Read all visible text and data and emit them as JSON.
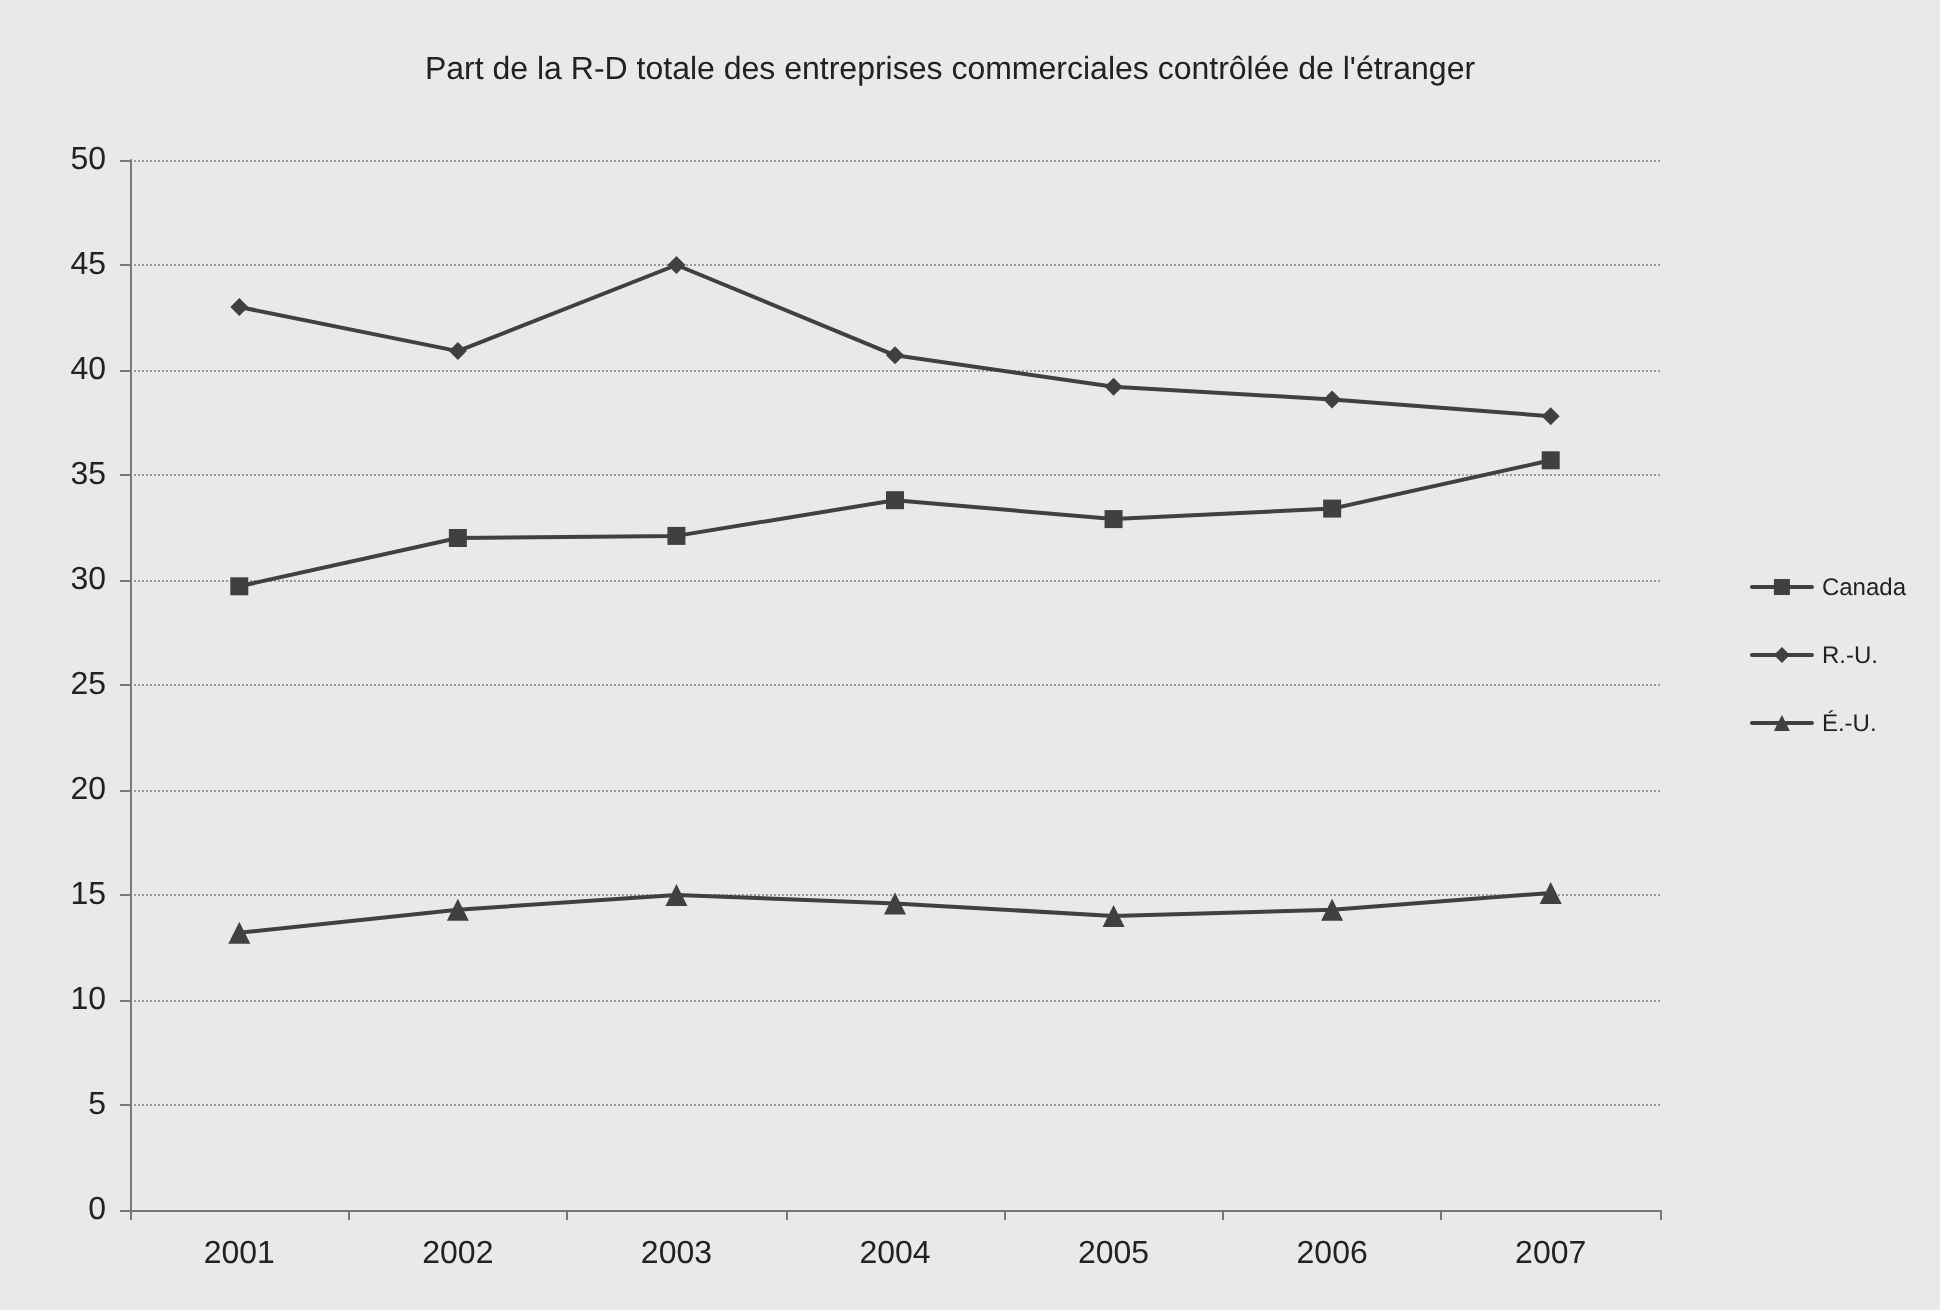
{
  "chart_data": {
    "type": "line",
    "title": "Part de la R-D totale des entreprises commerciales contrôlée de l'étranger",
    "categories": [
      "2001",
      "2002",
      "2003",
      "2004",
      "2005",
      "2006",
      "2007"
    ],
    "series": [
      {
        "name": "Canada",
        "color": "#404040",
        "marker": "square",
        "values": [
          29.7,
          32.0,
          32.1,
          33.8,
          32.9,
          33.4,
          35.7
        ]
      },
      {
        "name": "R.-U.",
        "color": "#404040",
        "marker": "diamond",
        "values": [
          43.0,
          40.9,
          45.0,
          40.7,
          39.2,
          38.6,
          37.8
        ]
      },
      {
        "name": "É.-U.",
        "color": "#404040",
        "marker": "triangle",
        "values": [
          13.2,
          14.3,
          15.0,
          14.6,
          14.0,
          14.3,
          15.1
        ]
      }
    ],
    "ylim": [
      0,
      50
    ],
    "yticks": [
      0,
      5,
      10,
      15,
      20,
      25,
      30,
      35,
      40,
      45,
      50
    ],
    "grid": "y",
    "legend": "right",
    "line_style": "solid"
  }
}
